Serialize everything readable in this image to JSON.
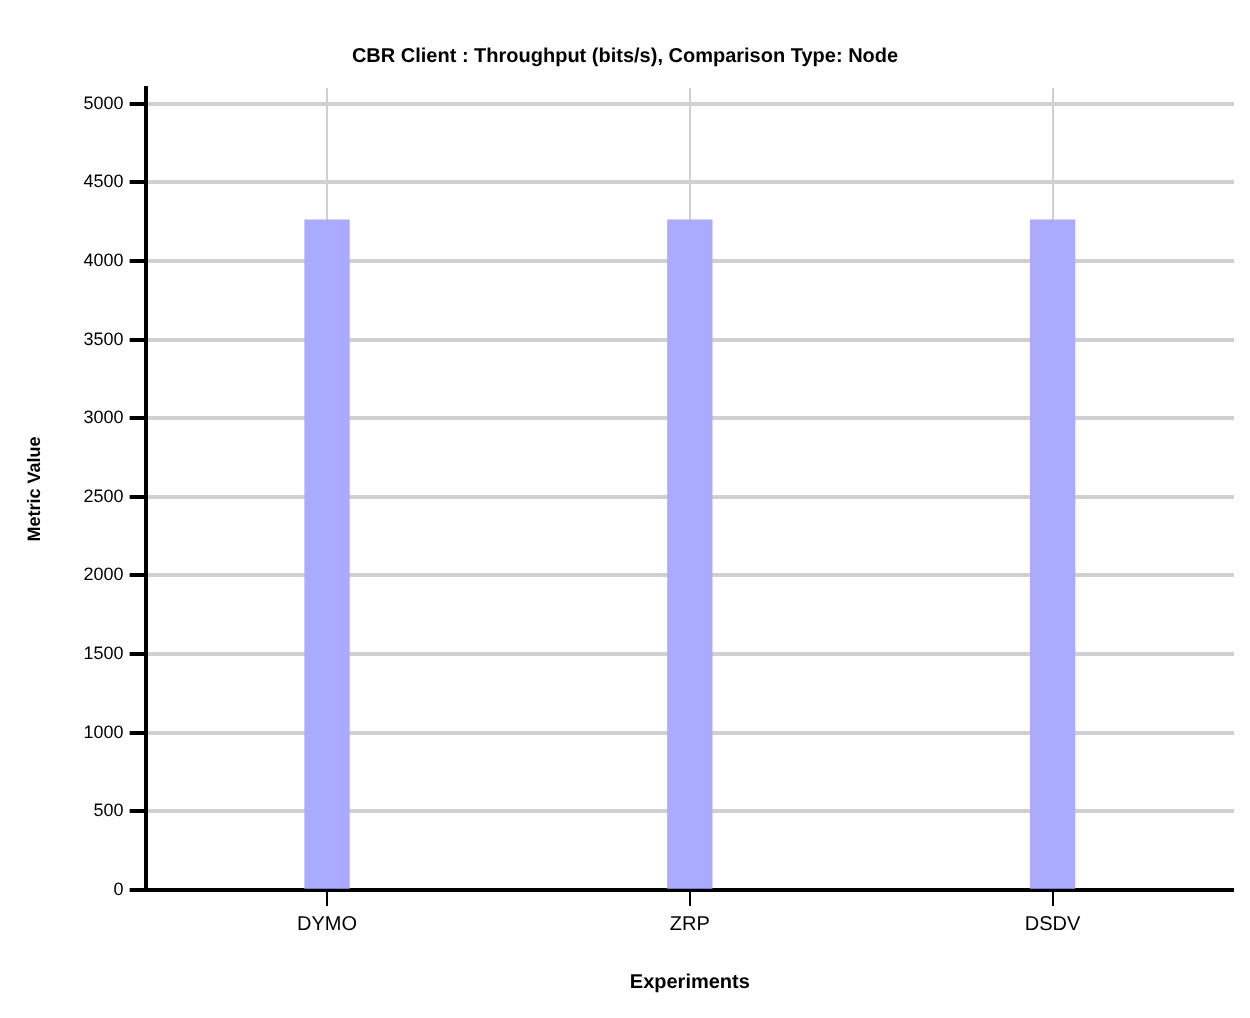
{
  "chart_data": {
    "type": "bar",
    "title": "CBR Client : Throughput (bits/s), Comparison Type: Node",
    "xlabel": "Experiments",
    "ylabel": "Metric Value",
    "categories": [
      "DYMO",
      "ZRP",
      "DSDV"
    ],
    "values": [
      4260,
      4260,
      4260
    ],
    "color": "#aaaaff",
    "ylim": [
      0,
      5100
    ],
    "yticks": [
      0,
      500,
      1000,
      1500,
      2000,
      2500,
      3000,
      3500,
      4000,
      4500,
      5000
    ],
    "grid": true,
    "legend": false
  }
}
